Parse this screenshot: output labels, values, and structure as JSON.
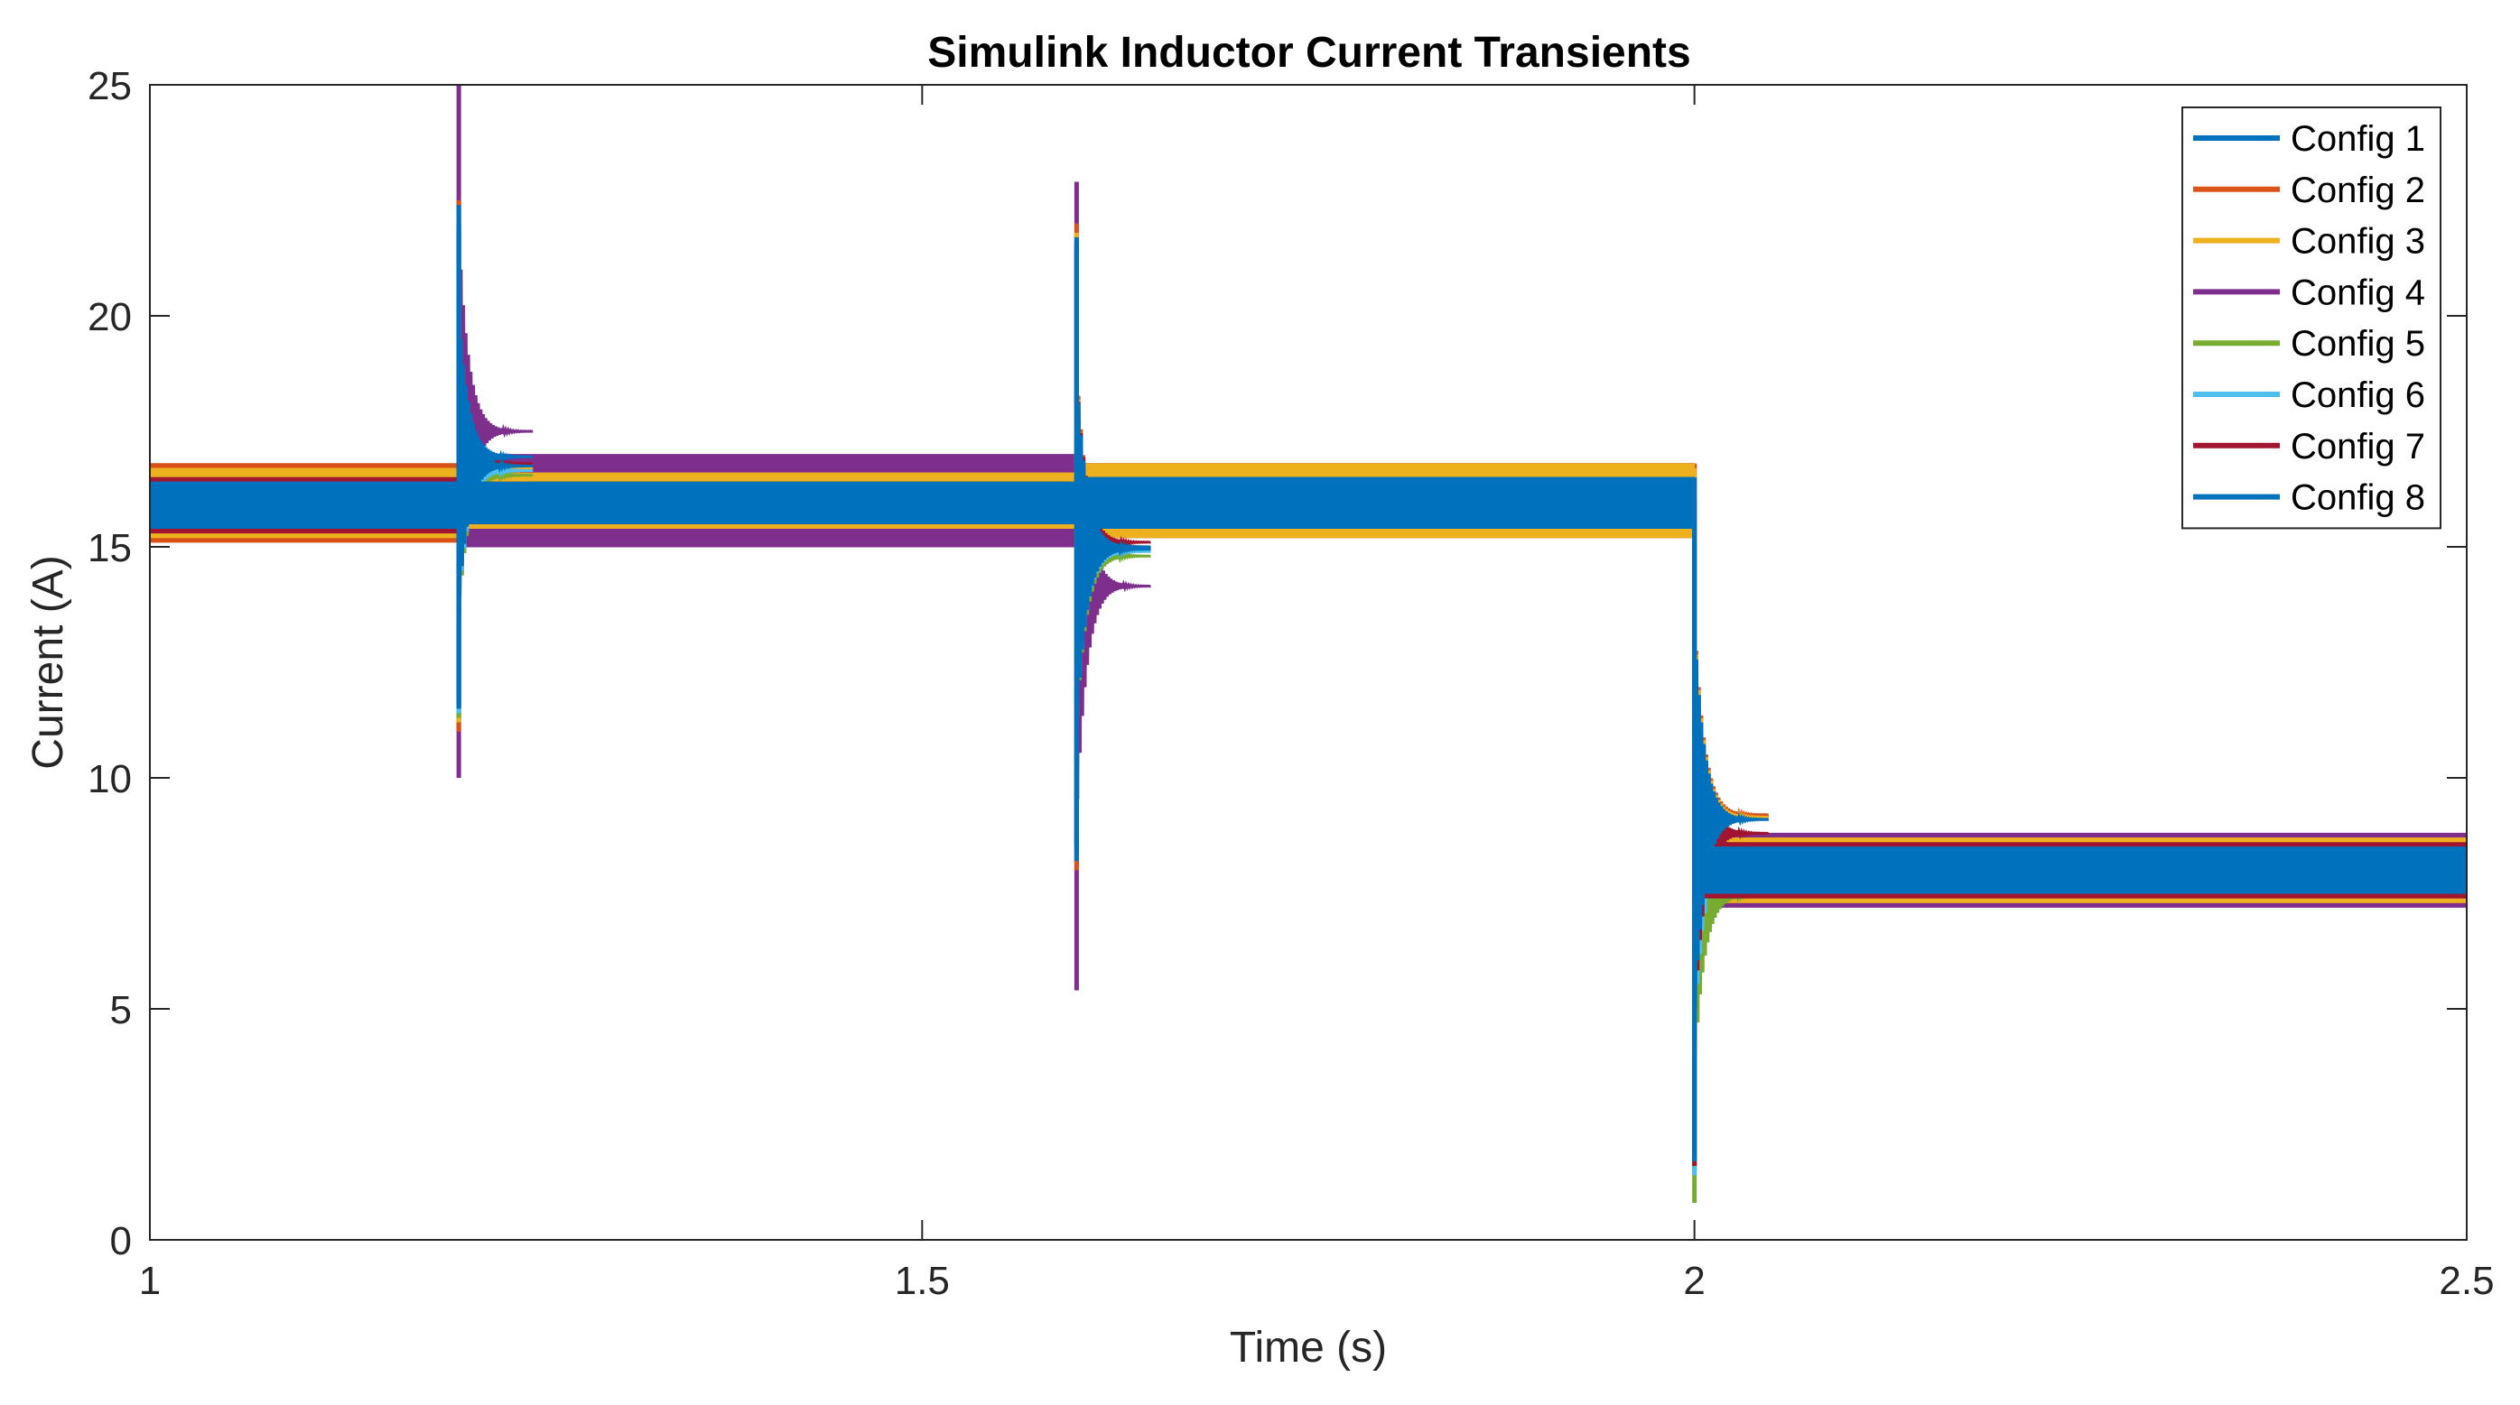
{
  "chart_data": {
    "type": "line",
    "title": "Simulink Inductor Current Transients",
    "xlabel": "Time (s)",
    "ylabel": "Current (A)",
    "xlim": [
      1,
      2.5
    ],
    "ylim": [
      0,
      25
    ],
    "xticks": [
      1,
      1.5,
      2,
      2.5
    ],
    "xtick_labels": [
      "1",
      "1.5",
      "2",
      "2.5"
    ],
    "yticks": [
      0,
      5,
      10,
      15,
      20,
      25
    ],
    "ytick_labels": [
      "0",
      "5",
      "10",
      "15",
      "20",
      "25"
    ],
    "grid": false,
    "legend_position": "top-right",
    "description_note_removed": true,
    "series": [
      {
        "name": "Config 1",
        "color": "#0072BD",
        "band": [
          [
            1.0,
            15.4,
            16.4
          ],
          [
            1.2,
            15.5,
            16.3
          ],
          [
            1.6,
            15.4,
            16.5
          ],
          [
            2.0,
            15.4,
            16.4
          ],
          [
            2.5,
            7.5,
            8.5
          ]
        ],
        "spikes": [
          [
            1.2,
            11.5,
            22.0
          ],
          [
            1.6,
            8.5,
            21.5
          ],
          [
            2.0,
            1.7,
            16.5
          ]
        ]
      },
      {
        "name": "Config 2",
        "color": "#D95319",
        "band": [
          [
            1.0,
            15.1,
            16.8
          ],
          [
            1.2,
            15.4,
            16.6
          ],
          [
            1.6,
            15.2,
            16.8
          ],
          [
            2.0,
            15.2,
            16.7
          ],
          [
            2.5,
            7.3,
            8.7
          ]
        ],
        "spikes": [
          [
            1.2,
            11.0,
            22.5
          ],
          [
            1.6,
            8.0,
            22.0
          ],
          [
            2.0,
            1.6,
            16.8
          ]
        ]
      },
      {
        "name": "Config 3",
        "color": "#EDB120",
        "band": [
          [
            1.0,
            15.2,
            16.7
          ],
          [
            1.2,
            15.4,
            16.6
          ],
          [
            1.6,
            15.2,
            16.8
          ],
          [
            2.0,
            15.2,
            16.7
          ],
          [
            2.5,
            7.3,
            8.7
          ]
        ],
        "spikes": [
          [
            1.2,
            11.2,
            22.2
          ],
          [
            1.6,
            8.2,
            21.8
          ],
          [
            2.0,
            1.6,
            16.7
          ]
        ]
      },
      {
        "name": "Config 4",
        "color": "#7E2F8E",
        "band": [
          [
            1.0,
            15.3,
            16.7
          ],
          [
            1.2,
            15.0,
            17.0
          ],
          [
            1.6,
            15.2,
            16.8
          ],
          [
            2.0,
            15.2,
            16.8
          ],
          [
            2.5,
            7.2,
            8.8
          ]
        ],
        "spikes": [
          [
            1.2,
            10.0,
            25.0
          ],
          [
            1.6,
            5.4,
            22.9
          ],
          [
            2.0,
            1.5,
            16.8
          ]
        ]
      },
      {
        "name": "Config 5",
        "color": "#77AC30",
        "band": [
          [
            1.0,
            15.4,
            16.5
          ],
          [
            1.2,
            15.5,
            16.4
          ],
          [
            1.6,
            15.4,
            16.5
          ],
          [
            2.0,
            15.4,
            16.4
          ],
          [
            2.5,
            7.5,
            8.5
          ]
        ],
        "spikes": [
          [
            1.2,
            11.3,
            21.8
          ],
          [
            1.6,
            8.3,
            21.3
          ],
          [
            2.0,
            0.8,
            14.1
          ]
        ]
      },
      {
        "name": "Config 6",
        "color": "#4DBEEE",
        "band": [
          [
            1.0,
            15.4,
            16.4
          ],
          [
            1.2,
            15.5,
            16.3
          ],
          [
            1.6,
            15.4,
            16.5
          ],
          [
            2.0,
            15.4,
            16.4
          ],
          [
            2.5,
            7.5,
            8.5
          ]
        ],
        "spikes": [
          [
            1.2,
            11.4,
            21.9
          ],
          [
            1.6,
            8.4,
            21.4
          ],
          [
            2.0,
            1.4,
            15.5
          ]
        ]
      },
      {
        "name": "Config 7",
        "color": "#A2142F",
        "band": [
          [
            1.0,
            15.3,
            16.5
          ],
          [
            1.2,
            15.5,
            16.4
          ],
          [
            1.6,
            15.4,
            16.5
          ],
          [
            2.0,
            15.4,
            16.5
          ],
          [
            2.5,
            7.4,
            8.6
          ]
        ],
        "spikes": [
          [
            1.2,
            11.6,
            22.0
          ],
          [
            1.6,
            8.6,
            21.6
          ],
          [
            2.0,
            1.6,
            16.0
          ]
        ]
      },
      {
        "name": "Config 8",
        "color": "#0072BD",
        "band": [
          [
            1.0,
            15.4,
            16.4
          ],
          [
            1.2,
            15.6,
            16.4
          ],
          [
            1.6,
            15.5,
            16.5
          ],
          [
            2.0,
            15.4,
            16.4
          ],
          [
            2.5,
            7.5,
            8.5
          ]
        ],
        "spikes": [
          [
            1.2,
            11.5,
            22.4
          ],
          [
            1.6,
            8.2,
            21.7
          ],
          [
            2.0,
            1.7,
            16.5
          ]
        ]
      }
    ]
  }
}
